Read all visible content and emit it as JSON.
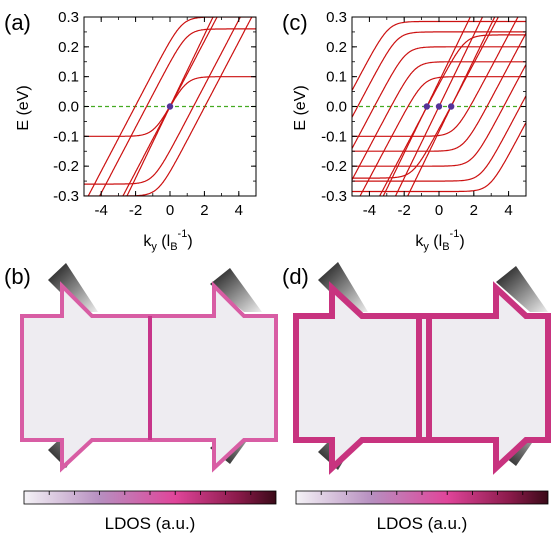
{
  "panels": {
    "a": {
      "label": "(a)"
    },
    "b": {
      "label": "(b)"
    },
    "c": {
      "label": "(c)"
    },
    "d": {
      "label": "(d)"
    }
  },
  "axes": {
    "ylabel": "E (eV)",
    "xlabel_k": "k",
    "xlabel_sub": "y",
    "xlabel_paren_open": " (l",
    "xlabel_B": "B",
    "xlabel_exp": "-1",
    "xlabel_paren_close": ")"
  },
  "colors": {
    "band": "#cc1111",
    "fermi": "#44aa22",
    "dot": "#553399",
    "ldos_edge": "#d4338a",
    "ldos_bg": "#eeecf1",
    "lead": "#222222"
  },
  "colorbar": {
    "title": "LDOS (a.u.)",
    "stops": [
      "#f4f2f6",
      "#b78fc0",
      "#e0459a",
      "#8a1a4a",
      "#3a0a18"
    ]
  },
  "chart_data": [
    {
      "type": "line",
      "panel": "(a)",
      "xlim": [
        -5,
        5
      ],
      "ylim": [
        -0.3,
        0.3
      ],
      "xticks": [
        -4,
        -2,
        0,
        2,
        4
      ],
      "yticks": [
        -0.3,
        -0.2,
        -0.1,
        0.0,
        0.1,
        0.2,
        0.3
      ],
      "ytick_labels": [
        "-0.3",
        "-0.2",
        "-0.1",
        "0.0",
        "0.1",
        "0.2",
        "0.3"
      ],
      "xtick_labels": [
        "-4",
        "-2",
        "0",
        "2",
        "4"
      ],
      "grid": false,
      "fermi_level": 0.0,
      "crossings_ky": [
        0.0
      ],
      "bands": [
        {
          "type": "edge",
          "offset": 0.0,
          "direction": 1
        },
        {
          "type": "right",
          "level": 0.1,
          "offset": 0.9
        },
        {
          "type": "right",
          "level": 0.26,
          "offset": 1.0
        },
        {
          "type": "right",
          "level": 0.3,
          "offset": 0.7
        },
        {
          "type": "left",
          "level": -0.1,
          "offset": -0.9
        },
        {
          "type": "left",
          "level": -0.26,
          "offset": -1.0
        },
        {
          "type": "left",
          "level": -0.3,
          "offset": -0.7
        }
      ]
    },
    {
      "type": "line",
      "panel": "(c)",
      "xlim": [
        -5,
        5
      ],
      "ylim": [
        -0.3,
        0.3
      ],
      "xticks": [
        -4,
        -2,
        0,
        2,
        4
      ],
      "yticks": [
        -0.3,
        -0.2,
        -0.1,
        0.0,
        0.1,
        0.2,
        0.3
      ],
      "ytick_labels": [
        "-0.3",
        "-0.2",
        "-0.1",
        "0.0",
        "0.1",
        "0.2",
        "0.3"
      ],
      "xtick_labels": [
        "-4",
        "-2",
        "0",
        "2",
        "4"
      ],
      "grid": false,
      "fermi_level": 0.0,
      "crossings_ky": [
        -0.7,
        0.0,
        0.7
      ],
      "bands": [
        {
          "type": "edge",
          "offset": -0.7,
          "direction": 1
        },
        {
          "type": "edge",
          "offset": 0.0,
          "direction": 1
        },
        {
          "type": "edge",
          "offset": 0.7,
          "direction": 1
        },
        {
          "type": "right",
          "level": 0.1,
          "offset": -0.9
        },
        {
          "type": "right",
          "level": 0.15,
          "offset": -1.4
        },
        {
          "type": "right",
          "level": 0.2,
          "offset": -1.9
        },
        {
          "type": "right",
          "level": 0.25,
          "offset": -2.4
        },
        {
          "type": "right",
          "level": 0.285,
          "offset": -2.9
        },
        {
          "type": "right",
          "level": 0.24,
          "offset": 1.5
        },
        {
          "type": "left",
          "level": -0.1,
          "offset": 0.9
        },
        {
          "type": "left",
          "level": -0.15,
          "offset": 1.4
        },
        {
          "type": "left",
          "level": -0.2,
          "offset": 1.9
        },
        {
          "type": "left",
          "level": -0.25,
          "offset": 2.4
        },
        {
          "type": "left",
          "level": -0.285,
          "offset": 2.9
        },
        {
          "type": "left",
          "level": -0.24,
          "offset": -1.5
        }
      ]
    }
  ]
}
